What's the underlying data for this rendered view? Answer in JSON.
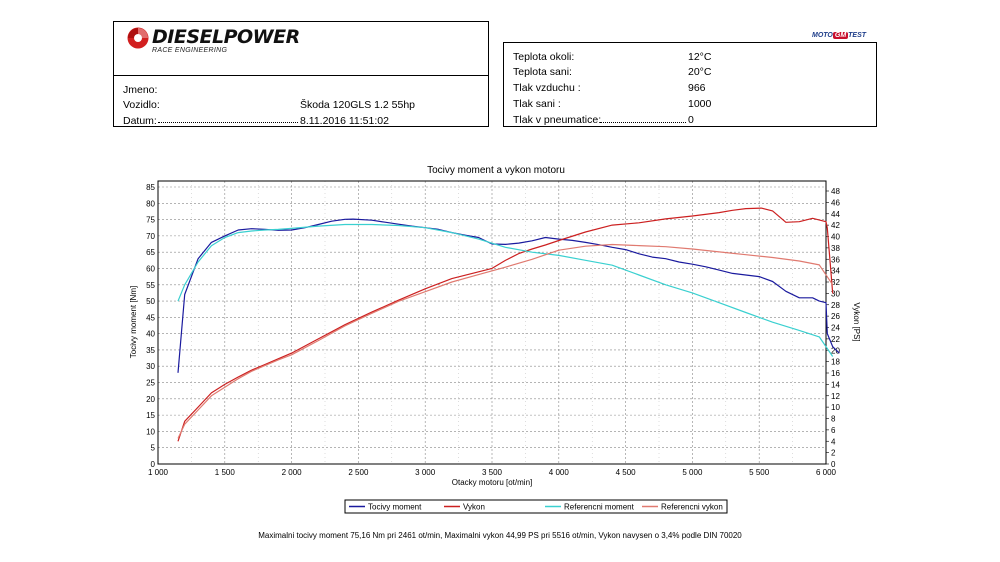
{
  "header": {
    "brand": "DIESELPOWER",
    "brand_sub": "RACE ENGINEERING",
    "test_badge": [
      "MOTO",
      "GM",
      "TEST"
    ]
  },
  "info": {
    "name_label": "Jmeno:",
    "name_value": "",
    "vehicle_label": "Vozidlo:",
    "vehicle_value": "Škoda 120GLS 1.2 55hp",
    "date_label": "Datum:",
    "date_value": "8.11.2016 11:51:02"
  },
  "conditions": [
    {
      "label": "Teplota okoli:",
      "value": "12°C"
    },
    {
      "label": "Teplota sani:",
      "value": "20°C"
    },
    {
      "label": "Tlak vzduchu :",
      "value": "966"
    },
    {
      "label": "Tlak sani :",
      "value": "1000"
    },
    {
      "label": "Tlak v pneumatice:",
      "value": "0"
    }
  ],
  "footer_note": "Maximalni tocivy moment 75,16 Nm pri 2461 ot/min,  Maximalni vykon 44,99 PS pri 5516 ot/min,  Vykon navysen o 3,4% podle DIN 70020",
  "chart_data": {
    "type": "line",
    "title": "Tocivy moment a vykon motoru",
    "xlabel": "Otacky motoru [ot/min]",
    "ylabel": "Tocivy moment [Nm]",
    "y2label": "Vykon [PS]",
    "xlim": [
      1000,
      6000
    ],
    "ylim": [
      0,
      85
    ],
    "y2lim": [
      0,
      48
    ],
    "x_ticks": [
      "1 000",
      "1 500",
      "2 000",
      "2 500",
      "3 000",
      "3 500",
      "4 000",
      "4 500",
      "5 000",
      "5 500",
      "6 000"
    ],
    "y_ticks": [
      "0",
      "5",
      "10",
      "15",
      "20",
      "25",
      "30",
      "35",
      "40",
      "45",
      "50",
      "55",
      "60",
      "65",
      "70",
      "75",
      "80",
      "85"
    ],
    "y2_ticks": [
      "0",
      "2",
      "4",
      "6",
      "8",
      "10",
      "12",
      "14",
      "16",
      "18",
      "20",
      "22",
      "24",
      "26",
      "28",
      "30",
      "32",
      "34",
      "36",
      "38",
      "40",
      "42",
      "44",
      "46",
      "48"
    ],
    "grid": true,
    "legend_position": "bottom",
    "series": [
      {
        "name": "Tocivy moment",
        "axis": "left",
        "color": "#1a1a9e",
        "x": [
          1150,
          1200,
          1300,
          1400,
          1500,
          1600,
          1700,
          1800,
          1900,
          2000,
          2100,
          2200,
          2300,
          2400,
          2461,
          2600,
          2700,
          2800,
          2900,
          3000,
          3100,
          3200,
          3300,
          3400,
          3500,
          3600,
          3700,
          3800,
          3900,
          4000,
          4100,
          4200,
          4300,
          4400,
          4500,
          4600,
          4700,
          4800,
          4900,
          5000,
          5100,
          5200,
          5300,
          5400,
          5500,
          5600,
          5700,
          5800,
          5900,
          5950,
          6000,
          6010,
          6050,
          6100
        ],
        "y": [
          28,
          52,
          63,
          68,
          70,
          71.8,
          72.2,
          72,
          71.7,
          71.8,
          72.5,
          73.5,
          74.5,
          75.1,
          75.16,
          74.8,
          74.2,
          73.6,
          73,
          72.5,
          72,
          71,
          70.2,
          69.5,
          67.5,
          67.4,
          67.8,
          68.5,
          69.5,
          69,
          68.6,
          68,
          67.3,
          66.5,
          65.8,
          64.5,
          63.5,
          63,
          62,
          61.3,
          60.5,
          59.5,
          58.5,
          58,
          57.5,
          56,
          53,
          51,
          51,
          50,
          49.5,
          40,
          36,
          34
        ]
      },
      {
        "name": "Vykon",
        "axis": "right",
        "color": "#cc2020",
        "x": [
          1150,
          1200,
          1300,
          1400,
          1500,
          1600,
          1700,
          1800,
          1900,
          2000,
          2200,
          2400,
          2600,
          2800,
          3000,
          3200,
          3400,
          3500,
          3600,
          3700,
          3800,
          3900,
          4000,
          4200,
          4400,
          4600,
          4800,
          5000,
          5200,
          5300,
          5400,
          5516,
          5600,
          5700,
          5800,
          5900,
          6000,
          6010,
          6050
        ],
        "y": [
          4,
          7.5,
          10,
          12.5,
          14,
          15.3,
          16.5,
          17.5,
          18.5,
          19.5,
          22,
          24.5,
          26.7,
          28.8,
          30.8,
          32.6,
          33.8,
          34.4,
          35.8,
          37,
          37.8,
          38.5,
          39.3,
          40.8,
          42,
          42.4,
          43.1,
          43.6,
          44.2,
          44.6,
          44.9,
          44.99,
          44.5,
          42.5,
          42.6,
          43.2,
          42.6,
          41.5,
          30
        ]
      },
      {
        "name": "Referencni moment",
        "axis": "left",
        "color": "#3ad0d0",
        "x": [
          1150,
          1200,
          1300,
          1400,
          1500,
          1600,
          1700,
          1800,
          1900,
          2000,
          2200,
          2400,
          2600,
          2800,
          3000,
          3200,
          3400,
          3600,
          3800,
          4000,
          4200,
          4400,
          4600,
          4800,
          5000,
          5200,
          5400,
          5600,
          5800,
          5950,
          6050
        ],
        "y": [
          50,
          55,
          62,
          67,
          69.5,
          71,
          71.5,
          71.8,
          72,
          72.3,
          73,
          73.5,
          73.5,
          73.2,
          72.5,
          71,
          69,
          66.5,
          65,
          64,
          62.5,
          61,
          58,
          55,
          52.5,
          49.5,
          46.5,
          43.5,
          41,
          39,
          33
        ]
      },
      {
        "name": "Referencni vykon",
        "axis": "right",
        "color": "#e07a70",
        "x": [
          1150,
          1200,
          1300,
          1400,
          1500,
          1600,
          1700,
          1800,
          1900,
          2000,
          2200,
          2400,
          2600,
          2800,
          3000,
          3200,
          3400,
          3600,
          3800,
          4000,
          4200,
          4400,
          4600,
          4800,
          5000,
          5200,
          5400,
          5600,
          5800,
          5950,
          6050
        ],
        "y": [
          4.5,
          7,
          9.5,
          12,
          13.5,
          15,
          16.3,
          17.3,
          18.3,
          19.2,
          21.7,
          24.3,
          26.5,
          28.6,
          30.3,
          32,
          33.3,
          34.6,
          36,
          37.6,
          38.3,
          38.6,
          38.4,
          38.2,
          37.8,
          37.3,
          36.8,
          36.3,
          35.7,
          35,
          31.5
        ]
      }
    ]
  }
}
